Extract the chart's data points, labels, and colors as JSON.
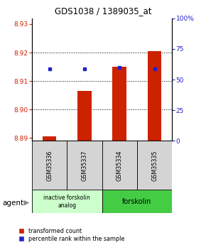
{
  "title": "GDS1038 / 1389035_at",
  "samples": [
    "GSM35336",
    "GSM35337",
    "GSM35334",
    "GSM35335"
  ],
  "red_values": [
    8.8905,
    8.9065,
    8.915,
    8.9205
  ],
  "blue_values": [
    8.9143,
    8.9143,
    8.9148,
    8.9143
  ],
  "ylim_left": [
    8.889,
    8.932
  ],
  "ylim_right": [
    0,
    100
  ],
  "yticks_left": [
    8.89,
    8.9,
    8.91,
    8.92,
    8.93
  ],
  "yticks_right": [
    0,
    25,
    50,
    75,
    100
  ],
  "ytick_labels_right": [
    "0",
    "25",
    "50",
    "75",
    "100%"
  ],
  "agent_label": "agent",
  "legend_red": "transformed count",
  "legend_blue": "percentile rank within the sample",
  "bar_color": "#cc2200",
  "dot_color": "#2222cc",
  "bar_bottom": 8.889,
  "group1_label": "inactive forskolin\nanalog",
  "group1_color": "#ccffcc",
  "group2_label": "forskolin",
  "group2_color": "#44cc44",
  "tick_color_left": "#cc2200",
  "tick_color_right": "#2222cc",
  "grid_lines": [
    8.9,
    8.91,
    8.92
  ]
}
